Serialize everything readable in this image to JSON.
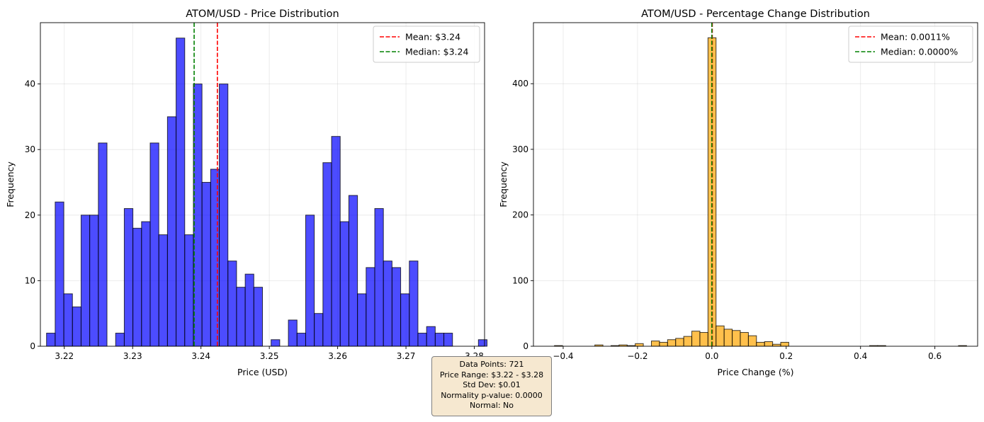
{
  "chart_data": [
    {
      "type": "bar",
      "title": "ATOM/USD - Price Distribution",
      "xlabel": "Price (USD)",
      "ylabel": "Frequency",
      "xlim": [
        3.2165,
        3.2815
      ],
      "ylim": [
        0,
        49.35
      ],
      "xticks": [
        3.22,
        3.23,
        3.24,
        3.25,
        3.26,
        3.27,
        3.28
      ],
      "xtick_labels": [
        "3.22",
        "3.23",
        "3.24",
        "3.25",
        "3.26",
        "3.27",
        "3.28"
      ],
      "yticks": [
        0,
        10,
        20,
        30,
        40
      ],
      "bin_start": 3.2174,
      "bin_width": 0.001264,
      "values": [
        2,
        22,
        8,
        6,
        20,
        20,
        31,
        0,
        2,
        21,
        18,
        19,
        31,
        17,
        35,
        47,
        17,
        40,
        25,
        27,
        40,
        13,
        9,
        11,
        9,
        0,
        1,
        0,
        4,
        2,
        20,
        5,
        28,
        32,
        19,
        23,
        8,
        12,
        21,
        13,
        12,
        8,
        13,
        2,
        3,
        2,
        2,
        0,
        0,
        0,
        1
      ],
      "bar_color": "#0000ff",
      "grid": true,
      "legend_position": "top-right",
      "lines": [
        {
          "label": "Mean: $3.24",
          "x": 3.2424,
          "color": "#ff0000"
        },
        {
          "label": "Median: $3.24",
          "x": 3.239,
          "color": "#008000"
        }
      ]
    },
    {
      "type": "bar",
      "title": "ATOM/USD - Percentage Change Distribution",
      "xlabel": "Price Change (%)",
      "ylabel": "Frequency",
      "xlim": [
        -0.48,
        0.715
      ],
      "ylim": [
        0,
        493
      ],
      "xticks": [
        -0.4,
        -0.2,
        0.0,
        0.2,
        0.4,
        0.6
      ],
      "xtick_labels": [
        "−0.4",
        "−0.2",
        "0.0",
        "0.2",
        "0.4",
        "0.6"
      ],
      "yticks": [
        0,
        100,
        200,
        300,
        400
      ],
      "bin_start": -0.4235,
      "bin_width": 0.02174,
      "values": [
        1,
        0,
        0,
        0,
        0,
        2,
        0,
        1,
        2,
        1,
        4,
        0,
        8,
        6,
        10,
        12,
        15,
        23,
        21,
        470,
        31,
        26,
        24,
        21,
        16,
        6,
        7,
        3,
        6,
        0,
        0,
        0,
        0,
        0,
        0,
        0,
        0,
        0,
        0,
        1,
        1,
        0,
        0,
        0,
        0,
        0,
        0,
        0,
        0,
        0,
        1
      ],
      "bar_color": "#ffa500",
      "grid": true,
      "legend_position": "top-right",
      "lines": [
        {
          "label": "Mean: 0.0011%",
          "x": 0.0011,
          "color": "#ff0000"
        },
        {
          "label": "Median: 0.0000%",
          "x": 0.0,
          "color": "#008000"
        }
      ]
    }
  ],
  "stats_box": {
    "line1": "Data Points: 721",
    "line2": "Price Range: $3.22 - $3.28",
    "line3": "Std Dev: $0.01",
    "line4": "Normality p-value: 0.0000",
    "line5": "Normal: No"
  }
}
